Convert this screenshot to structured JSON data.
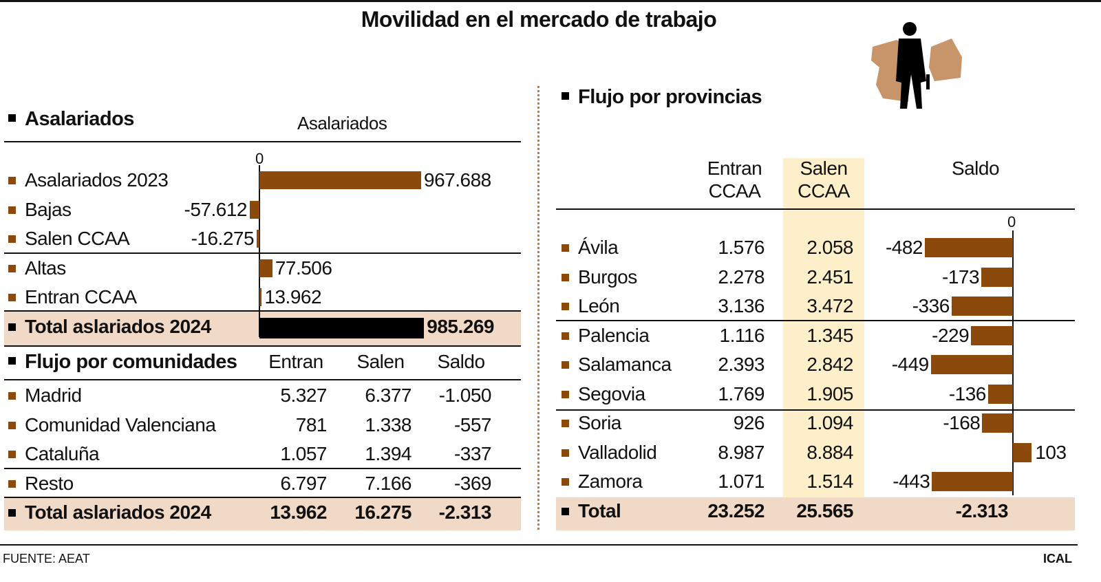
{
  "title": "Movilidad en el mercado de trabajo",
  "colors": {
    "bar": "#8b4a0c",
    "total_bar": "#000000",
    "total_band": "#f1d9c8",
    "salen_highlight": "#fdefc9",
    "divider": "#c07a3a"
  },
  "footer": {
    "source": "FUENTE: AEAT",
    "brand": "ICAL"
  },
  "chart_data": [
    {
      "type": "bar",
      "orientation": "horizontal",
      "section_title": "Asalariados",
      "title": "Asalariados",
      "zero_label": "0",
      "categories": [
        "Asalariados 2023",
        "Bajas",
        "Salen CCAA",
        "Altas",
        "Entran CCAA",
        "Total aslariados 2024"
      ],
      "values": [
        967688,
        -57612,
        -16275,
        77506,
        13962,
        985269
      ],
      "labels": [
        "967.688",
        "-57.612",
        "-16.275",
        "77.506",
        "13.962",
        "985.269"
      ]
    },
    {
      "type": "table",
      "section_title": "Flujo por comunidades",
      "columns": [
        "Entran",
        "Salen",
        "Saldo"
      ],
      "rows": [
        {
          "name": "Madrid",
          "entran": "5.327",
          "salen": "6.377",
          "saldo": "-1.050"
        },
        {
          "name": "Comunidad Valenciana",
          "entran": "781",
          "salen": "1.338",
          "saldo": "-557"
        },
        {
          "name": "Cataluña",
          "entran": "1.057",
          "salen": "1.394",
          "saldo": "-337"
        },
        {
          "name": "Resto",
          "entran": "6.797",
          "salen": "7.166",
          "saldo": "-369"
        }
      ],
      "total": {
        "name": "Total aslariados 2024",
        "entran": "13.962",
        "salen": "16.275",
        "saldo": "-2.313"
      }
    },
    {
      "type": "bar",
      "orientation": "horizontal",
      "section_title": "Flujo por provincias",
      "columns": [
        "Entran\nCCAA",
        "Salen\nCCAA",
        "Saldo"
      ],
      "columns_l1": [
        "Entran",
        "Salen",
        "Saldo"
      ],
      "columns_l2": [
        "CCAA",
        "CCAA",
        ""
      ],
      "zero_label": "0",
      "rows": [
        {
          "name": "Ávila",
          "entran": "1.576",
          "salen": "2.058",
          "saldo": -482,
          "saldo_label": "-482"
        },
        {
          "name": "Burgos",
          "entran": "2.278",
          "salen": "2.451",
          "saldo": -173,
          "saldo_label": "-173"
        },
        {
          "name": "León",
          "entran": "3.136",
          "salen": "3.472",
          "saldo": -336,
          "saldo_label": "-336"
        },
        {
          "name": "Palencia",
          "entran": "1.116",
          "salen": "1.345",
          "saldo": -229,
          "saldo_label": "-229"
        },
        {
          "name": "Salamanca",
          "entran": "2.393",
          "salen": "2.842",
          "saldo": -449,
          "saldo_label": "-449"
        },
        {
          "name": "Segovia",
          "entran": "1.769",
          "salen": "1.905",
          "saldo": -136,
          "saldo_label": "-136"
        },
        {
          "name": "Soria",
          "entran": "926",
          "salen": "1.094",
          "saldo": -168,
          "saldo_label": "-168"
        },
        {
          "name": "Valladolid",
          "entran": "8.987",
          "salen": "8.884",
          "saldo": 103,
          "saldo_label": "103"
        },
        {
          "name": "Zamora",
          "entran": "1.071",
          "salen": "1.514",
          "saldo": -443,
          "saldo_label": "-443"
        }
      ],
      "total": {
        "name": "Total",
        "entran": "23.252",
        "salen": "25.565",
        "saldo": "-2.313"
      }
    }
  ]
}
